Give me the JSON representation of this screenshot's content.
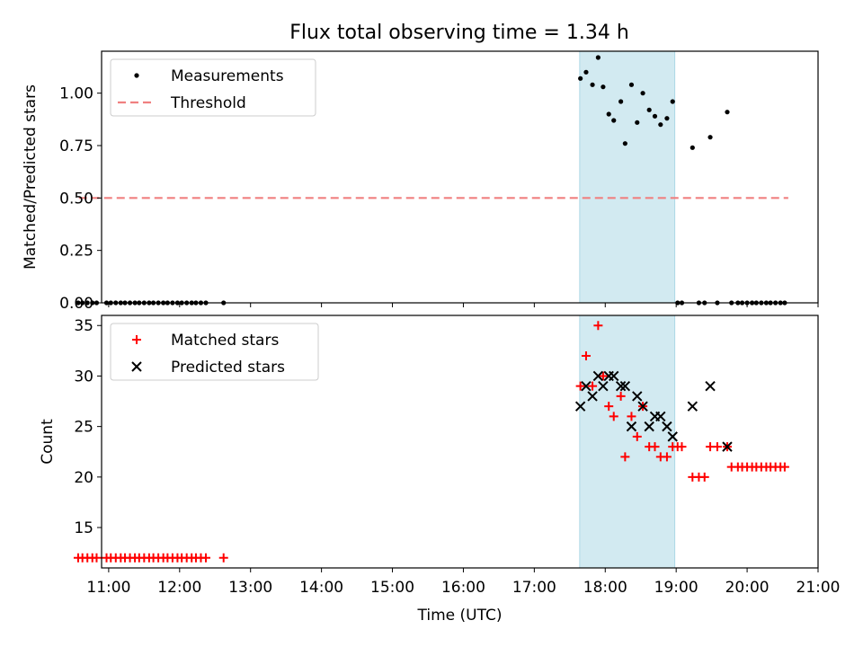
{
  "title": "Flux total observing time = 1.34 h",
  "chart_data": [
    {
      "type": "scatter",
      "ylabel": "Matched/Predicted stars",
      "xlabel": "",
      "xlim": [
        10.9,
        21.0
      ],
      "ylim": [
        0.0,
        1.2
      ],
      "yticks": [
        "0.00",
        "0.25",
        "0.50",
        "0.75",
        "1.00"
      ],
      "ytick_values": [
        0,
        0.25,
        0.5,
        0.75,
        1.0
      ],
      "shaded_region": {
        "x_start": 17.64,
        "x_end": 18.98,
        "color": "#add8e6"
      },
      "legend": {
        "placement": "top-left",
        "entries": [
          "Measurements",
          "Threshold"
        ]
      },
      "threshold": {
        "name": "Threshold",
        "x_start": 10.58,
        "x_end": 20.58,
        "y": 0.5,
        "color": "#f08080"
      },
      "series": [
        {
          "name": "Measurements",
          "color": "#000000",
          "points": [
            [
              10.57,
              0
            ],
            [
              10.63,
              0
            ],
            [
              10.7,
              0
            ],
            [
              10.77,
              0
            ],
            [
              10.83,
              0
            ],
            [
              10.97,
              0
            ],
            [
              11.03,
              0
            ],
            [
              11.1,
              0
            ],
            [
              11.17,
              0
            ],
            [
              11.23,
              0
            ],
            [
              11.3,
              0
            ],
            [
              11.37,
              0
            ],
            [
              11.43,
              0
            ],
            [
              11.5,
              0
            ],
            [
              11.57,
              0
            ],
            [
              11.63,
              0
            ],
            [
              11.7,
              0
            ],
            [
              11.77,
              0
            ],
            [
              11.83,
              0
            ],
            [
              11.9,
              0
            ],
            [
              11.97,
              0
            ],
            [
              12.03,
              0
            ],
            [
              12.1,
              0
            ],
            [
              12.17,
              0
            ],
            [
              12.23,
              0
            ],
            [
              12.3,
              0
            ],
            [
              12.37,
              0
            ],
            [
              12.62,
              0
            ],
            [
              17.65,
              1.07
            ],
            [
              17.73,
              1.1
            ],
            [
              17.82,
              1.04
            ],
            [
              17.9,
              1.17
            ],
            [
              17.97,
              1.03
            ],
            [
              18.05,
              0.9
            ],
            [
              18.12,
              0.87
            ],
            [
              18.22,
              0.96
            ],
            [
              18.28,
              0.76
            ],
            [
              18.37,
              1.04
            ],
            [
              18.45,
              0.86
            ],
            [
              18.53,
              1.0
            ],
            [
              18.62,
              0.92
            ],
            [
              18.7,
              0.89
            ],
            [
              18.78,
              0.85
            ],
            [
              18.87,
              0.88
            ],
            [
              18.95,
              0.96
            ],
            [
              19.02,
              0
            ],
            [
              19.08,
              0
            ],
            [
              19.23,
              0.74
            ],
            [
              19.32,
              0
            ],
            [
              19.4,
              0
            ],
            [
              19.48,
              0.79
            ],
            [
              19.58,
              0
            ],
            [
              19.72,
              0.91
            ],
            [
              19.78,
              0
            ],
            [
              19.87,
              0
            ],
            [
              19.93,
              0
            ],
            [
              20.0,
              0
            ],
            [
              20.07,
              0
            ],
            [
              20.13,
              0
            ],
            [
              20.2,
              0
            ],
            [
              20.27,
              0
            ],
            [
              20.33,
              0
            ],
            [
              20.4,
              0
            ],
            [
              20.47,
              0
            ],
            [
              20.53,
              0
            ]
          ]
        }
      ]
    },
    {
      "type": "scatter",
      "ylabel": "Count",
      "xlabel": "Time (UTC)",
      "xlim": [
        10.9,
        21.0
      ],
      "ylim": [
        11.0,
        36.0
      ],
      "yticks": [
        "15",
        "20",
        "25",
        "30",
        "35"
      ],
      "ytick_values": [
        15,
        20,
        25,
        30,
        35
      ],
      "xticks": [
        "11:00",
        "12:00",
        "13:00",
        "14:00",
        "15:00",
        "16:00",
        "17:00",
        "18:00",
        "19:00",
        "20:00",
        "21:00"
      ],
      "xtick_values": [
        11,
        12,
        13,
        14,
        15,
        16,
        17,
        18,
        19,
        20,
        21
      ],
      "shaded_region": {
        "x_start": 17.64,
        "x_end": 18.98,
        "color": "#add8e6"
      },
      "legend": {
        "placement": "top-left",
        "entries": [
          "Matched stars",
          "Predicted stars"
        ]
      },
      "series": [
        {
          "name": "Matched stars",
          "color": "#ff0000",
          "marker": "plus",
          "points": [
            [
              10.57,
              12
            ],
            [
              10.63,
              12
            ],
            [
              10.7,
              12
            ],
            [
              10.77,
              12
            ],
            [
              10.83,
              12
            ],
            [
              10.97,
              12
            ],
            [
              11.03,
              12
            ],
            [
              11.1,
              12
            ],
            [
              11.17,
              12
            ],
            [
              11.23,
              12
            ],
            [
              11.3,
              12
            ],
            [
              11.37,
              12
            ],
            [
              11.43,
              12
            ],
            [
              11.5,
              12
            ],
            [
              11.57,
              12
            ],
            [
              11.63,
              12
            ],
            [
              11.7,
              12
            ],
            [
              11.77,
              12
            ],
            [
              11.83,
              12
            ],
            [
              11.9,
              12
            ],
            [
              11.97,
              12
            ],
            [
              12.03,
              12
            ],
            [
              12.1,
              12
            ],
            [
              12.17,
              12
            ],
            [
              12.23,
              12
            ],
            [
              12.3,
              12
            ],
            [
              12.37,
              12
            ],
            [
              12.62,
              12
            ],
            [
              17.65,
              29
            ],
            [
              17.73,
              32
            ],
            [
              17.82,
              29
            ],
            [
              17.9,
              35
            ],
            [
              17.97,
              30
            ],
            [
              18.05,
              27
            ],
            [
              18.12,
              26
            ],
            [
              18.22,
              28
            ],
            [
              18.28,
              22
            ],
            [
              18.37,
              26
            ],
            [
              18.45,
              24
            ],
            [
              18.53,
              27
            ],
            [
              18.62,
              23
            ],
            [
              18.7,
              23
            ],
            [
              18.78,
              22
            ],
            [
              18.87,
              22
            ],
            [
              18.95,
              23
            ],
            [
              19.02,
              23
            ],
            [
              19.08,
              23
            ],
            [
              19.23,
              20
            ],
            [
              19.32,
              20
            ],
            [
              19.4,
              20
            ],
            [
              19.48,
              23
            ],
            [
              19.58,
              23
            ],
            [
              19.72,
              23
            ],
            [
              19.78,
              21
            ],
            [
              19.87,
              21
            ],
            [
              19.93,
              21
            ],
            [
              20.0,
              21
            ],
            [
              20.07,
              21
            ],
            [
              20.13,
              21
            ],
            [
              20.2,
              21
            ],
            [
              20.27,
              21
            ],
            [
              20.33,
              21
            ],
            [
              20.4,
              21
            ],
            [
              20.47,
              21
            ],
            [
              20.53,
              21
            ]
          ]
        },
        {
          "name": "Predicted stars",
          "color": "#000000",
          "marker": "x",
          "points": [
            [
              17.65,
              27
            ],
            [
              17.73,
              29
            ],
            [
              17.82,
              28
            ],
            [
              17.9,
              30
            ],
            [
              17.97,
              29
            ],
            [
              18.05,
              30
            ],
            [
              18.12,
              30
            ],
            [
              18.22,
              29
            ],
            [
              18.28,
              29
            ],
            [
              18.37,
              25
            ],
            [
              18.45,
              28
            ],
            [
              18.53,
              27
            ],
            [
              18.62,
              25
            ],
            [
              18.7,
              26
            ],
            [
              18.78,
              26
            ],
            [
              18.87,
              25
            ],
            [
              18.95,
              24
            ],
            [
              19.23,
              27
            ],
            [
              19.48,
              29
            ],
            [
              19.72,
              23
            ]
          ]
        }
      ]
    }
  ]
}
